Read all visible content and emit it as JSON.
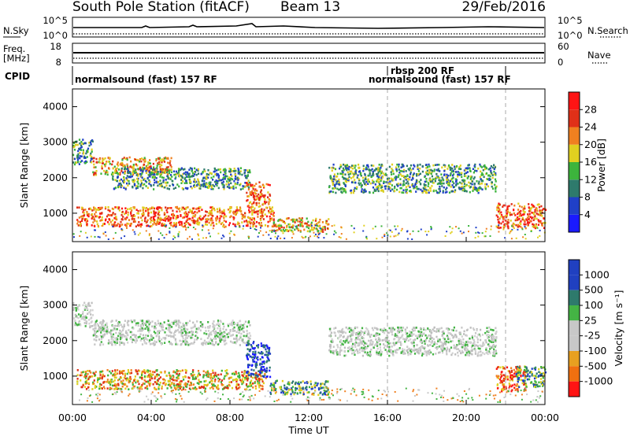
{
  "header": {
    "station": "South Pole Station (fitACF)",
    "beam": "Beam 13",
    "date": "29/Feb/2016"
  },
  "nsky_panel": {
    "label": "N.Sky",
    "left_ticks": [
      "10^5",
      "10^0"
    ],
    "right_ticks": [
      "10^5",
      "10^0"
    ],
    "right_label": "N.Search"
  },
  "freq_panel": {
    "label_line1": "Freq.",
    "label_line2": "[MHz]",
    "left_ticks": [
      "18",
      "8"
    ],
    "right_ticks": [
      "60",
      "0"
    ],
    "right_label": "Nave"
  },
  "cpid_panel": {
    "label": "CPID",
    "segments": [
      {
        "text": "normalsound (fast) 157 RF",
        "start": 0.0
      },
      {
        "text": "rbsp 200 RF",
        "start": 16.0
      },
      {
        "text": "normalsound (fast) 157 RF",
        "start": 16.0
      }
    ]
  },
  "panels": {
    "power": {
      "ylabel": "Slant Range [km]",
      "yticks": [
        "1000",
        "2000",
        "3000",
        "4000"
      ],
      "cbar_label": "Power [dB]",
      "cbar_ticks": [
        "4",
        "8",
        "12",
        "16",
        "20",
        "24",
        "28"
      ],
      "cbar_colors": [
        "#1a1aff",
        "#2040c8",
        "#2e7a6c",
        "#3cb43c",
        "#e0d020",
        "#f08020",
        "#e03018",
        "#ff1414"
      ]
    },
    "velocity": {
      "ylabel": "Slant Range [km]",
      "yticks": [
        "1000",
        "2000",
        "3000",
        "4000"
      ],
      "cbar_label": "Velocity [m s⁻¹]",
      "cbar_ticks": [
        "1000",
        "500",
        "100",
        "25",
        "-25",
        "-100",
        "-500",
        "-1000"
      ],
      "cbar_colors": [
        "#2040c0",
        "#2e7a6c",
        "#44b444",
        "#c8c8c8",
        "#c8c8c8",
        "#e8a020",
        "#f07010",
        "#ff1414"
      ]
    }
  },
  "xaxis": {
    "label": "Time UT",
    "ticks": [
      "00:00",
      "04:00",
      "08:00",
      "12:00",
      "16:00",
      "20:00",
      "00:00"
    ]
  },
  "chart_data": {
    "type": "heatmap",
    "title": "South Pole Station (fitACF)",
    "xlabel": "Time UT",
    "ylabel": "Slant Range [km]",
    "xlim": [
      0,
      24
    ],
    "ylim": [
      200,
      4500
    ],
    "markers_hours": [
      16.0,
      21.9
    ],
    "power_regions": [
      {
        "t0": 0.0,
        "t1": 1.0,
        "r0": 2400,
        "r1": 3100,
        "level": "green"
      },
      {
        "t0": 1.0,
        "t1": 5.0,
        "r0": 2100,
        "r1": 2600,
        "level": "orange"
      },
      {
        "t0": 2.0,
        "t1": 9.0,
        "r0": 1700,
        "r1": 2300,
        "level": "green"
      },
      {
        "t0": 0.2,
        "t1": 10.2,
        "r0": 650,
        "r1": 1200,
        "level": "red"
      },
      {
        "t0": 8.8,
        "t1": 10.0,
        "r0": 1200,
        "r1": 1900,
        "level": "red"
      },
      {
        "t0": 10.0,
        "t1": 13.0,
        "r0": 500,
        "r1": 900,
        "level": "orange"
      },
      {
        "t0": 13.0,
        "t1": 21.5,
        "r0": 1600,
        "r1": 2400,
        "level": "green"
      },
      {
        "t0": 21.5,
        "t1": 24.0,
        "r0": 600,
        "r1": 1300,
        "level": "red"
      }
    ],
    "velocity_regions": [
      {
        "t0": 0.0,
        "t1": 1.0,
        "r0": 2400,
        "r1": 3100,
        "level": "grey"
      },
      {
        "t0": 1.0,
        "t1": 9.0,
        "r0": 1900,
        "r1": 2600,
        "level": "grey"
      },
      {
        "t0": 0.2,
        "t1": 9.8,
        "r0": 650,
        "r1": 1200,
        "level": "orange"
      },
      {
        "t0": 8.8,
        "t1": 10.0,
        "r0": 1000,
        "r1": 2000,
        "level": "blue"
      },
      {
        "t0": 10.0,
        "t1": 13.0,
        "r0": 500,
        "r1": 900,
        "level": "green"
      },
      {
        "t0": 13.0,
        "t1": 21.5,
        "r0": 1600,
        "r1": 2400,
        "level": "grey"
      },
      {
        "t0": 21.5,
        "t1": 23.0,
        "r0": 600,
        "r1": 1300,
        "level": "red"
      },
      {
        "t0": 22.5,
        "t1": 24.0,
        "r0": 700,
        "r1": 1300,
        "level": "green"
      }
    ]
  }
}
